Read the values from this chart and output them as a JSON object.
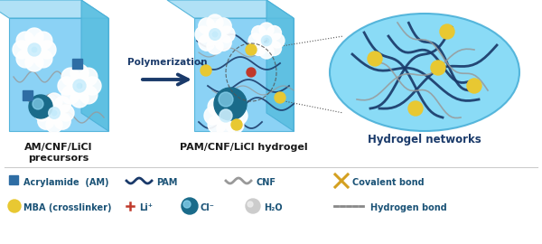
{
  "background_color": "#ffffff",
  "label1": "AM/CNF/LiCl\n precursors",
  "label2": "PAM/CNF/LiCl hydrogel",
  "label3": "Hydrogel networks",
  "arrow_label": "Polymerization",
  "cube_face_color": "#7ecef4",
  "cube_top_color": "#a8def5",
  "cube_right_color": "#5bbfe0",
  "cube_edge_color": "#4ab0d8",
  "ellipse_color": "#7ecef4",
  "ellipse_edge_color": "#4ab0d8",
  "text_color_dark": "#1a3a6a",
  "text_color_label": "#1a1a1a",
  "legend_text_color": "#1a5276",
  "pam_color": "#1a3a6a",
  "cnf_color": "#999999",
  "am_color": "#2e6da4",
  "mba_color": "#e8c832",
  "li_color": "#c0392b",
  "cl_color": "#1a6b8a",
  "cl_inner_color": "#5bc8e8",
  "h2o_color": "#dddddd",
  "cov_color": "#d4a020",
  "hb_color": "#888888",
  "white_cluster": "#ffffff",
  "figsize": [
    6.0,
    2.7
  ],
  "dpi": 100
}
